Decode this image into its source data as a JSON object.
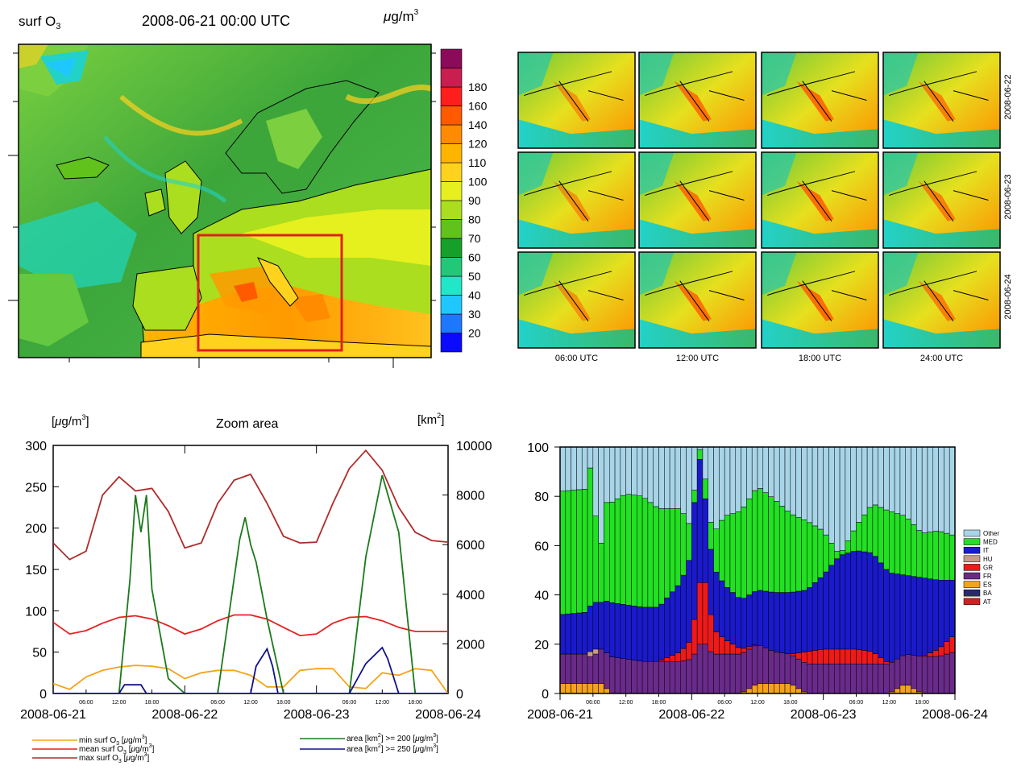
{
  "map_panel": {
    "title_left": "surf O",
    "title_left_sub": "3",
    "title_center": "2008-06-21 00:00 UTC",
    "title_right_mu": "μ",
    "title_right_unit": "g/m",
    "title_right_sup": "3",
    "colorbar": {
      "levels": [
        20,
        30,
        40,
        50,
        60,
        70,
        80,
        90,
        100,
        110,
        120,
        140,
        160,
        180
      ],
      "labels": [
        "20",
        "30",
        "40",
        "50",
        "60",
        "70",
        "80",
        "90",
        "100",
        "110",
        "120",
        "140",
        "160",
        "180"
      ],
      "colors": [
        "#0a0aff",
        "#1e78ff",
        "#1ec8ff",
        "#22e6c8",
        "#22c878",
        "#16a02a",
        "#62c21c",
        "#aade1e",
        "#e6f01e",
        "#ffd21e",
        "#ffb400",
        "#ff8c00",
        "#ff5a00",
        "#ff1e1e",
        "#c81e50",
        "#8c0a5a"
      ]
    },
    "zoom_box_color": "#e02020"
  },
  "mini_maps": {
    "row_labels": [
      "2008-06-22",
      "2008-06-23",
      "2008-06-24"
    ],
    "col_labels": [
      "06:00 UTC",
      "12:00 UTC",
      "18:00 UTC",
      "24:00 UTC"
    ]
  },
  "line_chart": {
    "left_unit_mu": "μ",
    "left_unit": "g/m",
    "left_unit_sup": "3",
    "center_title": "Zoom area",
    "right_unit": "km",
    "right_unit_sup": "2"
  },
  "legend_left": [
    {
      "label": "min   surf O",
      "sub": "3",
      "unit_mu": "μ",
      "unit": "g/m",
      "sup": "3",
      "color": "#f5a31a"
    },
    {
      "label": "mean surf O",
      "sub": "3",
      "unit_mu": "μ",
      "unit": "g/m",
      "sup": "3",
      "color": "#e82020"
    },
    {
      "label": "max  surf O",
      "sub": "3",
      "unit_mu": "μ",
      "unit": "g/m",
      "sup": "3",
      "color": "#b02a2a"
    }
  ],
  "legend_right": [
    {
      "label": "area [km",
      "sup": "2",
      "rest": "] >= 200 [",
      "unit_mu": "μ",
      "unit": "g/m",
      "sup2": "3",
      "color": "#1a7a1a"
    },
    {
      "label": "area [km",
      "sup": "2",
      "rest": "] >= 250 [",
      "unit_mu": "μ",
      "unit": "g/m",
      "sup2": "3",
      "color": "#10108a"
    }
  ],
  "stack_legend": [
    {
      "label": "Other",
      "color": "#a8d4e8"
    },
    {
      "label": "MED",
      "color": "#22e022"
    },
    {
      "label": "IT",
      "color": "#1a1acc"
    },
    {
      "label": "HU",
      "color": "#c89a8a"
    },
    {
      "label": "GR",
      "color": "#ee1a1a"
    },
    {
      "label": "FR",
      "color": "#6a2a8a"
    },
    {
      "label": "ES",
      "color": "#f5a31a"
    },
    {
      "label": "BA",
      "color": "#2a2a6a"
    },
    {
      "label": "AT",
      "color": "#cc2222"
    }
  ],
  "chart_data": [
    {
      "type": "line",
      "title": "Zoom area",
      "x_ticks_major": [
        "2008-06-21",
        "2008-06-22",
        "2008-06-23",
        "2008-06-24"
      ],
      "x_ticks_minor": [
        "06:00",
        "12:00",
        "18:00",
        "06:00",
        "12:00",
        "18:00",
        "06:00",
        "12:00",
        "18:00"
      ],
      "y_left_ticks": [
        "0",
        "50",
        "100",
        "150",
        "200",
        "250",
        "300"
      ],
      "y_left_lim": [
        0,
        300
      ],
      "y_right_ticks": [
        "0",
        "2000",
        "4000",
        "6000",
        "8000",
        "10000"
      ],
      "y_right_lim": [
        0,
        10000
      ],
      "x_hours": [
        0,
        3,
        6,
        9,
        12,
        15,
        18,
        21,
        24,
        27,
        30,
        33,
        36,
        39,
        42,
        45,
        48,
        51,
        54,
        57,
        60,
        63,
        66,
        69,
        72
      ],
      "series": [
        {
          "name": "min   surf O3",
          "axis": "left",
          "color": "#f5a31a",
          "values": [
            12,
            5,
            20,
            28,
            32,
            34,
            33,
            30,
            18,
            25,
            28,
            28,
            22,
            8,
            8,
            28,
            30,
            30,
            8,
            6,
            25,
            22,
            30,
            28,
            0
          ]
        },
        {
          "name": "mean surf O3",
          "axis": "left",
          "color": "#e82020",
          "values": [
            86,
            72,
            76,
            85,
            92,
            94,
            90,
            82,
            72,
            78,
            88,
            95,
            95,
            90,
            80,
            70,
            72,
            85,
            92,
            93,
            88,
            80,
            75,
            75,
            75
          ]
        },
        {
          "name": "max  surf O3",
          "axis": "left",
          "color": "#b02a2a",
          "values": [
            182,
            162,
            172,
            240,
            262,
            245,
            248,
            220,
            176,
            182,
            230,
            258,
            265,
            230,
            190,
            182,
            183,
            230,
            272,
            294,
            270,
            225,
            195,
            185,
            183
          ]
        },
        {
          "name": "area [km2] >= 200",
          "axis": "right",
          "color": "#1a7a1a",
          "x_hours": [
            0,
            12,
            14,
            15,
            16,
            17,
            18,
            21,
            24,
            30,
            34,
            35,
            36,
            37,
            39,
            42,
            48,
            54,
            57,
            60,
            63,
            66,
            72
          ],
          "values": [
            0,
            0,
            4600,
            8000,
            6500,
            8000,
            4200,
            600,
            0,
            0,
            6200,
            7100,
            6000,
            5300,
            3000,
            0,
            0,
            0,
            5500,
            8800,
            6500,
            0,
            0
          ]
        },
        {
          "name": "area [km2] >= 250",
          "axis": "right",
          "color": "#10108a",
          "x_hours": [
            0,
            12,
            13,
            16,
            17,
            18,
            72
          ],
          "values": [
            0,
            0,
            350,
            350,
            0,
            0,
            0
          ],
          "extra": [
            {
              "x_hours": [
                36,
                37,
                39,
                40,
                41,
                42
              ],
              "values": [
                0,
                1100,
                1800,
                1100,
                0,
                0
              ]
            },
            {
              "x_hours": [
                54,
                57,
                60,
                61,
                63,
                64
              ],
              "values": [
                0,
                1200,
                1850,
                1400,
                0,
                0
              ]
            }
          ]
        }
      ]
    },
    {
      "type": "bar",
      "stacked": true,
      "x_ticks_major": [
        "2008-06-21",
        "2008-06-22",
        "2008-06-23",
        "2008-06-24"
      ],
      "x_ticks_minor": [
        "06:00",
        "12:00",
        "18:00",
        "06:00",
        "12:00",
        "18:00",
        "06:00",
        "12:00",
        "18:00"
      ],
      "y_ticks": [
        "0",
        "20",
        "40",
        "60",
        "80",
        "100"
      ],
      "ylim": [
        0,
        100
      ],
      "stack_order": [
        "ES",
        "FR",
        "GR",
        "HU",
        "IT",
        "MED",
        "Other"
      ],
      "profile_hours": [
        0,
        5,
        6,
        7,
        8,
        9,
        12,
        15,
        18,
        22,
        24,
        25,
        26,
        27,
        28,
        30,
        33,
        36,
        39,
        42,
        45,
        48,
        51,
        54,
        57,
        60,
        63,
        66,
        69,
        72
      ],
      "profiles": {
        "ES": [
          4,
          4,
          4,
          4,
          4,
          0,
          0,
          0,
          0,
          0,
          0,
          0,
          0,
          0,
          0,
          0,
          0,
          4,
          4,
          4,
          0,
          0,
          0,
          0,
          0,
          0,
          4,
          0,
          0,
          0
        ],
        "FR": [
          12,
          12,
          10,
          14,
          14,
          15,
          14,
          13,
          13,
          13,
          14,
          18,
          22,
          18,
          16,
          16,
          16,
          16,
          13,
          12,
          12,
          12,
          12,
          12,
          12,
          12,
          12,
          15,
          15,
          17
        ],
        "GR": [
          0,
          0,
          0,
          0,
          0,
          0,
          0,
          0,
          0,
          4,
          8,
          20,
          30,
          20,
          10,
          6,
          2,
          0,
          0,
          0,
          5,
          6,
          6,
          6,
          5,
          0,
          0,
          0,
          3,
          7
        ],
        "HU": [
          0,
          0,
          4,
          0,
          0,
          0,
          0,
          0,
          0,
          0,
          0,
          0,
          0,
          0,
          0,
          0,
          0,
          0,
          0,
          0,
          0,
          0,
          0,
          0,
          0,
          0,
          0,
          0,
          0,
          0
        ],
        "IT": [
          16,
          17,
          20,
          18,
          20,
          22,
          22,
          22,
          22,
          28,
          35,
          60,
          40,
          28,
          25,
          22,
          20,
          22,
          24,
          25,
          25,
          30,
          38,
          40,
          40,
          37,
          32,
          32,
          28,
          22
        ],
        "MED": [
          50,
          50,
          62,
          8,
          40,
          40,
          45,
          45,
          40,
          30,
          10,
          0,
          8,
          8,
          14,
          28,
          36,
          42,
          38,
          32,
          28,
          18,
          0,
          10,
          20,
          25,
          24,
          18,
          20,
          18
        ]
      }
    }
  ]
}
